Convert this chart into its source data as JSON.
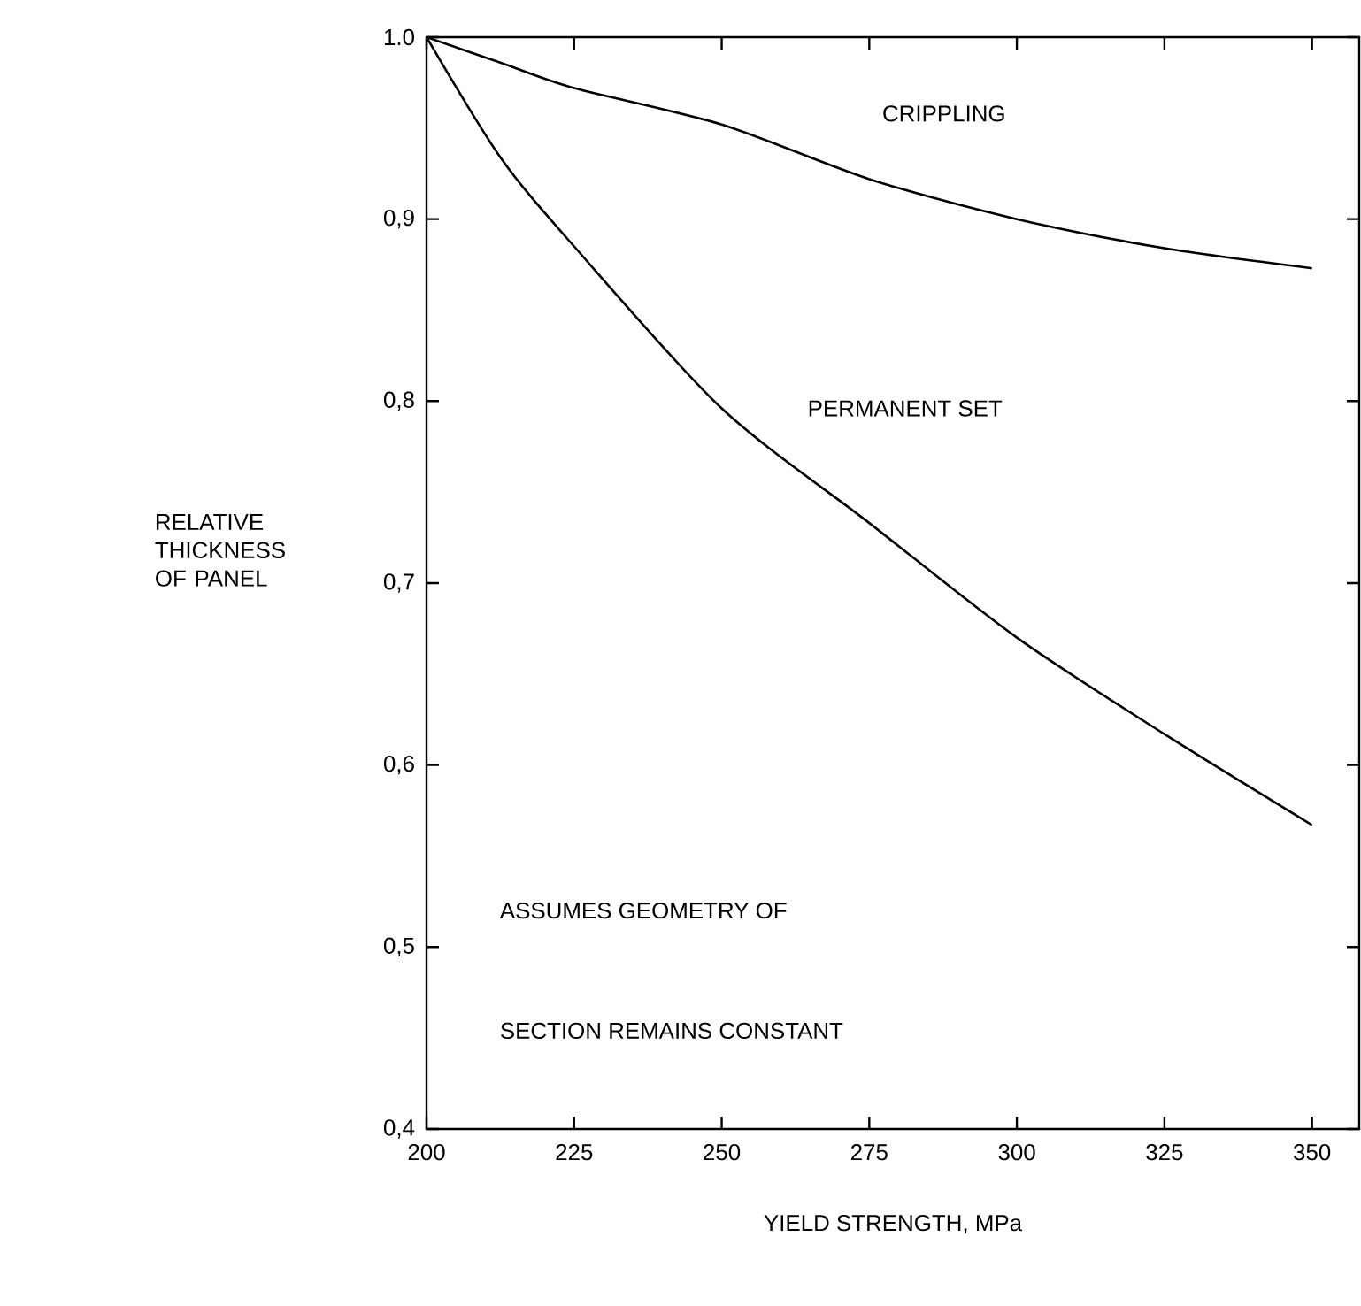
{
  "chart_data": {
    "type": "line",
    "xlabel": "YIELD STRENGTH,   MPa",
    "ylabel": "RELATIVE THICKNESS OF PANEL",
    "xlim": [
      200,
      358
    ],
    "ylim": [
      0.4,
      1.0
    ],
    "xticks": [
      200,
      225,
      250,
      275,
      300,
      325,
      350
    ],
    "yticks": [
      {
        "value": 0.4,
        "label": "0,4"
      },
      {
        "value": 0.5,
        "label": "0,5"
      },
      {
        "value": 0.6,
        "label": "0,6"
      },
      {
        "value": 0.7,
        "label": "0,7"
      },
      {
        "value": 0.8,
        "label": "0,8"
      },
      {
        "value": 0.9,
        "label": "0,9"
      },
      {
        "value": 1.0,
        "label": "1.0"
      }
    ],
    "x": [
      200,
      212.5,
      225,
      250,
      275,
      300,
      325,
      350
    ],
    "series": [
      {
        "name": "CRIPPLING",
        "color": "#000000",
        "values": [
          1.0,
          0.986,
          0.972,
          0.952,
          0.922,
          0.9,
          0.884,
          0.873
        ]
      },
      {
        "name": "PERMANENT SET",
        "color": "#000000",
        "values": [
          1.0,
          0.934,
          0.885,
          0.796,
          0.733,
          0.67,
          0.617,
          0.567
        ]
      }
    ],
    "annotations": [
      "ASSUMES GEOMETRY OF",
      "SECTION REMAINS CONSTANT"
    ],
    "grid": false,
    "legend": false,
    "marker": "none",
    "line_style": "solid"
  }
}
